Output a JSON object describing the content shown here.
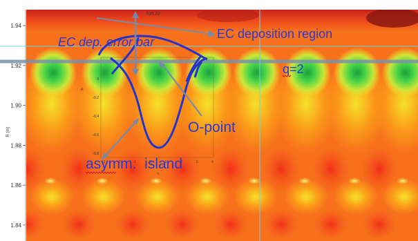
{
  "chart_data": {
    "type": "heatmap",
    "title": "fort.22",
    "xlabel": "",
    "ylabel": "R (m)",
    "y_ticks": [
      "1.94",
      "1.92",
      "1.90",
      "1.88",
      "1.86",
      "1.84"
    ],
    "ylim": [
      1.832,
      1.948
    ],
    "grid": false,
    "legend": "none",
    "colormap": [
      "#f6301c",
      "#f7641c",
      "#fb9a19",
      "#f6e22a",
      "#b7e43e",
      "#3ed646",
      "#148e3c"
    ],
    "inset": {
      "y_ticks": [
        "0",
        "-0.2",
        "-0.4",
        "-0.6",
        "-0.8"
      ],
      "x_ticks": [
        "-3",
        "-2",
        "-1",
        "0",
        "1",
        "2",
        "3",
        "4"
      ],
      "side_label": "R",
      "bottom_label": "c"
    },
    "annotations": [
      {
        "text": "EC dep. error bar",
        "color": "#2a37d6",
        "style": "italic"
      },
      {
        "text": "EC deposition region",
        "color": "#2a37d6"
      },
      {
        "text": "q=2",
        "color": "#2a37d6"
      },
      {
        "text": "O-point",
        "color": "#2a37d6"
      },
      {
        "text": "asymm.  island",
        "color": "#2a37d6"
      }
    ]
  }
}
